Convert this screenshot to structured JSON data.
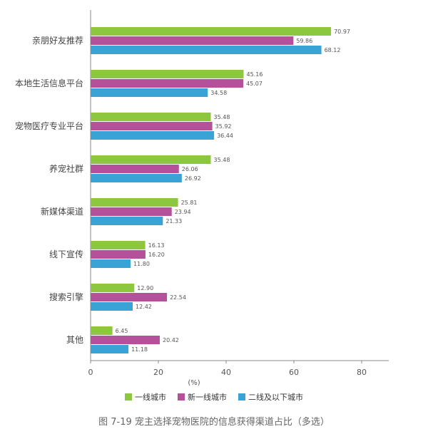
{
  "chart_data": {
    "type": "bar",
    "orientation": "horizontal",
    "categories": [
      "亲朋好友推荐",
      "本地生活信息平台",
      "宠物医疗专业平台",
      "养宠社群",
      "新媒体渠道",
      "线下宣传",
      "搜索引擎",
      "其他"
    ],
    "series": [
      {
        "name": "一线城市",
        "color": "#8dc63f",
        "values": [
          70.97,
          45.16,
          35.48,
          35.48,
          25.81,
          16.13,
          12.9,
          6.45
        ],
        "labels": [
          "70.97",
          "45.16",
          "35.48",
          "35.48",
          "25.81",
          "16.13",
          "12.90",
          "6.45"
        ]
      },
      {
        "name": "新一线城市",
        "color": "#b5519b",
        "values": [
          59.86,
          45.07,
          35.92,
          26.06,
          23.94,
          16.2,
          22.54,
          20.42
        ],
        "labels": [
          "59.86",
          "45.07",
          "35.92",
          "26.06",
          "23.94",
          "16.20",
          "22.54",
          "20.42"
        ]
      },
      {
        "name": "二线及以下城市",
        "color": "#3aa3d6",
        "values": [
          68.12,
          34.58,
          36.44,
          26.92,
          21.33,
          11.8,
          12.42,
          11.18
        ],
        "labels": [
          "68.12",
          "34.58",
          "36.44",
          "26.92",
          "21.33",
          "11.80",
          "12.42",
          "11.18"
        ]
      }
    ],
    "xticks": [
      "0",
      "20",
      "40",
      "60",
      "80"
    ],
    "xlim": [
      0,
      88
    ],
    "xlabel": "(%)",
    "legend_position": "bottom",
    "grid": false
  },
  "caption": "图 7-19   宠主选择宠物医院的信息获得渠道占比（多选）"
}
